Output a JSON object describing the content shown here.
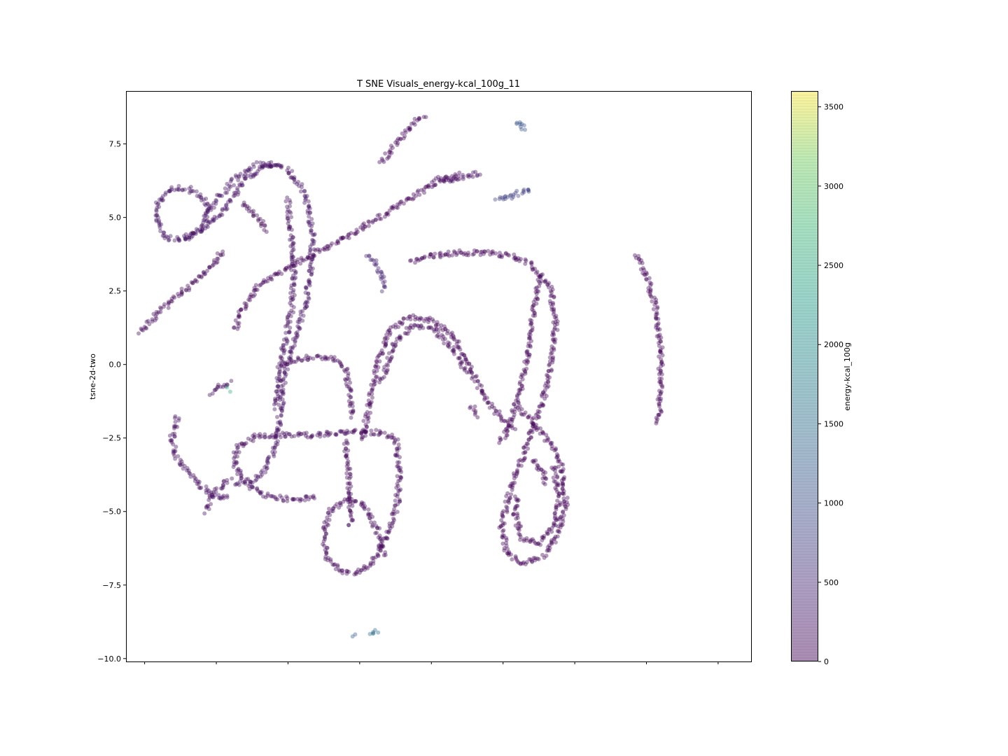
{
  "chart_data": {
    "type": "scatter",
    "title": "T SNE Visuals_energy-kcal_100g_11",
    "xlabel": "",
    "ylabel": "tsne-2d-two",
    "xlim": [
      -13.3,
      30.3
    ],
    "ylim": [
      -10.1,
      9.3
    ],
    "x_ticks": [
      -12,
      -7,
      -2,
      3,
      8,
      13,
      18,
      23,
      28
    ],
    "x_tick_labels_visible": false,
    "y_ticks": [
      -10.0,
      -7.5,
      -5.0,
      -2.5,
      0.0,
      2.5,
      5.0,
      7.5
    ],
    "y_tick_labels": [
      "−10.0",
      "−7.5",
      "−5.0",
      "−2.5",
      "0.0",
      "2.5",
      "5.0",
      "7.5"
    ],
    "grid": false,
    "marker_alpha": 0.4,
    "colormap": "viridis",
    "colorbar": {
      "label": "energy-kcal_100g",
      "range": [
        0,
        3600
      ],
      "ticks": [
        0,
        500,
        1000,
        1500,
        2000,
        2500,
        3000,
        3500
      ],
      "tick_labels": [
        "0",
        "500",
        "1000",
        "1500",
        "2000",
        "2500",
        "3000",
        "3500"
      ]
    },
    "series": [
      {
        "kind": "polyline",
        "energy": 210,
        "points": [
          [
            -11.2,
            5.0
          ],
          [
            -11.0,
            5.6
          ],
          [
            -10.0,
            6.0
          ],
          [
            -9.0,
            6.0
          ],
          [
            -8.0,
            5.7
          ],
          [
            -7.5,
            5.3
          ],
          [
            -8.0,
            4.6
          ],
          [
            -9.2,
            4.25
          ],
          [
            -10.5,
            4.3
          ],
          [
            -11.2,
            5.0
          ]
        ]
      },
      {
        "kind": "polyline",
        "energy": 200,
        "points": [
          [
            -9.2,
            4.3
          ],
          [
            -8.0,
            4.6
          ],
          [
            -6.5,
            5.2
          ],
          [
            -5.0,
            6.3
          ],
          [
            -3.2,
            6.8
          ],
          [
            -2.0,
            6.6
          ],
          [
            -0.8,
            5.8
          ],
          [
            -0.3,
            4.5
          ],
          [
            -0.4,
            3.2
          ],
          [
            -0.8,
            2.0
          ],
          [
            -1.5,
            1.0
          ],
          [
            -2.2,
            -0.2
          ],
          [
            -2.5,
            -1.5
          ],
          [
            -2.9,
            -2.8
          ],
          [
            -3.5,
            -3.5
          ],
          [
            -4.6,
            -4.0
          ],
          [
            -5.8,
            -4.1
          ]
        ]
      },
      {
        "kind": "polyline",
        "energy": 190,
        "points": [
          [
            -7.7,
            5.1
          ],
          [
            -6.8,
            5.7
          ],
          [
            -5.7,
            6.3
          ],
          [
            -4.2,
            6.8
          ],
          [
            -2.6,
            6.8
          ]
        ]
      },
      {
        "kind": "polyline",
        "energy": 160,
        "points": [
          [
            -2.0,
            5.6
          ],
          [
            -1.8,
            4.4
          ],
          [
            -1.6,
            3.2
          ],
          [
            -1.7,
            2.0
          ],
          [
            -2.2,
            0.8
          ],
          [
            -2.6,
            -0.2
          ],
          [
            -2.8,
            -1.5
          ]
        ]
      },
      {
        "kind": "polyline",
        "energy": 90,
        "points": [
          [
            -12.3,
            1.1
          ],
          [
            -11.0,
            1.8
          ],
          [
            -9.0,
            2.6
          ],
          [
            -7.5,
            3.3
          ],
          [
            -6.4,
            3.9
          ]
        ]
      },
      {
        "kind": "polyline",
        "energy": 60,
        "points": [
          [
            -5.7,
            1.2
          ],
          [
            -5.3,
            1.8
          ],
          [
            -4.0,
            2.7
          ],
          [
            -2.0,
            3.3
          ],
          [
            0.0,
            3.8
          ],
          [
            2.0,
            4.3
          ],
          [
            4.0,
            4.9
          ],
          [
            6.0,
            5.5
          ],
          [
            8.0,
            6.1
          ],
          [
            10.0,
            6.5
          ]
        ]
      },
      {
        "kind": "polyline",
        "energy": 60,
        "points": [
          [
            4.5,
            6.9
          ],
          [
            5.8,
            7.6
          ],
          [
            6.7,
            8.2
          ],
          [
            7.6,
            8.4
          ]
        ]
      },
      {
        "kind": "polyline",
        "energy": 1050,
        "points": [
          [
            13.9,
            8.3
          ],
          [
            14.2,
            8.2
          ],
          [
            14.5,
            7.95
          ]
        ]
      },
      {
        "kind": "polyline",
        "energy": 800,
        "points": [
          [
            12.5,
            5.6
          ],
          [
            13.5,
            5.7
          ],
          [
            14.5,
            5.9
          ],
          [
            15.0,
            5.95
          ]
        ]
      },
      {
        "kind": "polyline",
        "energy": 60,
        "points": [
          [
            6.6,
            3.5
          ],
          [
            8.0,
            3.7
          ],
          [
            10.0,
            3.8
          ],
          [
            12.0,
            3.8
          ],
          [
            13.5,
            3.7
          ],
          [
            15.0,
            3.4
          ],
          [
            16.3,
            2.6
          ],
          [
            16.7,
            1.3
          ],
          [
            16.3,
            0.0
          ],
          [
            15.8,
            -1.2
          ],
          [
            15.0,
            -2.2
          ],
          [
            14.3,
            -3.2
          ],
          [
            13.4,
            -4.4
          ],
          [
            12.9,
            -5.6
          ],
          [
            13.3,
            -6.4
          ],
          [
            14.4,
            -6.8
          ],
          [
            15.8,
            -6.5
          ],
          [
            16.8,
            -5.8
          ],
          [
            17.4,
            -4.8
          ],
          [
            17.1,
            -3.5
          ],
          [
            16.2,
            -2.6
          ],
          [
            15.0,
            -1.9
          ],
          [
            14.0,
            -1.4
          ]
        ]
      },
      {
        "kind": "polyline",
        "energy": 70,
        "points": [
          [
            15.6,
            3.0
          ],
          [
            15.2,
            2.0
          ],
          [
            14.9,
            1.0
          ],
          [
            14.6,
            0.0
          ],
          [
            14.1,
            -1.0
          ],
          [
            13.5,
            -2.0
          ],
          [
            12.8,
            -2.7
          ]
        ]
      },
      {
        "kind": "polyline",
        "energy": 80,
        "points": [
          [
            14.0,
            -4.5
          ],
          [
            13.8,
            -5.0
          ],
          [
            14.3,
            -5.9
          ],
          [
            15.6,
            -6.1
          ],
          [
            16.6,
            -5.5
          ],
          [
            16.9,
            -4.5
          ],
          [
            16.5,
            -3.4
          ]
        ]
      },
      {
        "kind": "polyline",
        "energy": 60,
        "points": [
          [
            3.2,
            -2.6
          ],
          [
            3.8,
            -1.0
          ],
          [
            4.4,
            0.3
          ],
          [
            5.2,
            1.2
          ],
          [
            6.5,
            1.6
          ],
          [
            8.0,
            1.5
          ],
          [
            9.5,
            1.0
          ],
          [
            10.5,
            0.0
          ],
          [
            11.6,
            -1.0
          ],
          [
            12.8,
            -1.8
          ],
          [
            13.8,
            -2.2
          ]
        ]
      },
      {
        "kind": "polyline",
        "energy": 100,
        "points": [
          [
            4.5,
            -0.6
          ],
          [
            5.3,
            0.6
          ],
          [
            6.6,
            1.3
          ],
          [
            8.2,
            1.2
          ],
          [
            9.5,
            0.5
          ],
          [
            10.6,
            -0.3
          ]
        ]
      },
      {
        "kind": "polyline",
        "energy": 60,
        "points": [
          [
            22.3,
            3.7
          ],
          [
            23.0,
            3.0
          ],
          [
            23.6,
            2.0
          ],
          [
            24.0,
            0.5
          ],
          [
            24.0,
            -0.8
          ],
          [
            23.8,
            -2.0
          ]
        ]
      },
      {
        "kind": "polyline",
        "energy": 120,
        "points": [
          [
            -2.5,
            0.0
          ],
          [
            -1.0,
            0.2
          ],
          [
            0.0,
            0.25
          ],
          [
            1.2,
            0.2
          ],
          [
            2.0,
            -0.1
          ],
          [
            2.3,
            -0.8
          ],
          [
            2.5,
            -1.8
          ]
        ]
      },
      {
        "kind": "polyline",
        "energy": 120,
        "points": [
          [
            -5.5,
            -2.8
          ],
          [
            -4.0,
            -2.4
          ],
          [
            -2.0,
            -2.4
          ],
          [
            0.0,
            -2.4
          ],
          [
            2.0,
            -2.3
          ],
          [
            4.0,
            -2.3
          ],
          [
            5.5,
            -2.5
          ],
          [
            5.8,
            -3.6
          ],
          [
            5.6,
            -4.8
          ],
          [
            4.9,
            -5.9
          ],
          [
            3.9,
            -6.7
          ],
          [
            2.8,
            -7.1
          ],
          [
            1.6,
            -7.0
          ],
          [
            0.7,
            -6.5
          ],
          [
            0.5,
            -5.7
          ],
          [
            0.9,
            -5.0
          ],
          [
            2.0,
            -4.6
          ],
          [
            3.2,
            -4.7
          ],
          [
            4.2,
            -5.6
          ],
          [
            4.7,
            -6.5
          ]
        ]
      },
      {
        "kind": "polyline",
        "energy": 150,
        "points": [
          [
            -5.5,
            -2.8
          ],
          [
            -5.8,
            -3.4
          ],
          [
            -5.3,
            -3.8
          ],
          [
            -4.2,
            -4.3
          ],
          [
            -3.2,
            -4.5
          ],
          [
            -1.5,
            -4.6
          ],
          [
            0.0,
            -4.5
          ]
        ]
      },
      {
        "kind": "polyline",
        "energy": 180,
        "points": [
          [
            -9.7,
            -1.8
          ],
          [
            -10.1,
            -2.5
          ],
          [
            -9.9,
            -3.0
          ],
          [
            -9.0,
            -3.6
          ],
          [
            -7.9,
            -4.2
          ],
          [
            -7.0,
            -4.5
          ],
          [
            -6.0,
            -4.5
          ]
        ]
      },
      {
        "kind": "polyline",
        "energy": 180,
        "points": [
          [
            -7.3,
            -1.0
          ],
          [
            -6.6,
            -0.7
          ],
          [
            -6.0,
            -0.6
          ]
        ]
      },
      {
        "kind": "polyline",
        "energy": 150,
        "points": [
          [
            -7.7,
            -5.0
          ],
          [
            -7.3,
            -4.4
          ],
          [
            -6.6,
            -4.1
          ],
          [
            -6.0,
            -3.9
          ]
        ]
      },
      {
        "kind": "polyline",
        "energy": 120,
        "points": [
          [
            2.0,
            -2.6
          ],
          [
            2.2,
            -3.5
          ],
          [
            2.3,
            -4.5
          ],
          [
            2.4,
            -5.5
          ]
        ]
      },
      {
        "kind": "polyline",
        "energy": 1200,
        "points": [
          [
            2.5,
            -9.2
          ],
          [
            2.7,
            -9.2
          ]
        ]
      },
      {
        "kind": "polyline",
        "energy": 1500,
        "points": [
          [
            3.8,
            -9.1
          ],
          [
            4.1,
            -9.1
          ],
          [
            4.4,
            -9.05
          ]
        ]
      },
      {
        "kind": "polyline",
        "energy": 2600,
        "points": [
          [
            -6.1,
            -0.85
          ],
          [
            -6.0,
            -0.88
          ]
        ]
      },
      {
        "kind": "polyline",
        "energy": 150,
        "points": [
          [
            8.2,
            6.3
          ],
          [
            9.3,
            6.3
          ],
          [
            10.5,
            6.4
          ],
          [
            11.5,
            6.5
          ]
        ]
      },
      {
        "kind": "polyline",
        "energy": 90,
        "points": [
          [
            -5.2,
            5.5
          ],
          [
            -4.1,
            5.0
          ],
          [
            -3.5,
            4.5
          ]
        ]
      },
      {
        "kind": "polyline",
        "energy": 400,
        "points": [
          [
            3.6,
            3.7
          ],
          [
            4.2,
            3.4
          ],
          [
            4.6,
            2.8
          ],
          [
            4.6,
            2.5
          ]
        ]
      },
      {
        "kind": "polyline",
        "energy": 80,
        "points": [
          [
            10.8,
            -1.4
          ],
          [
            11.2,
            -1.8
          ]
        ]
      },
      {
        "kind": "polyline",
        "energy": 80,
        "points": [
          [
            15.1,
            -3.2
          ],
          [
            15.9,
            -3.8
          ],
          [
            16.0,
            -4.1
          ]
        ]
      }
    ]
  }
}
